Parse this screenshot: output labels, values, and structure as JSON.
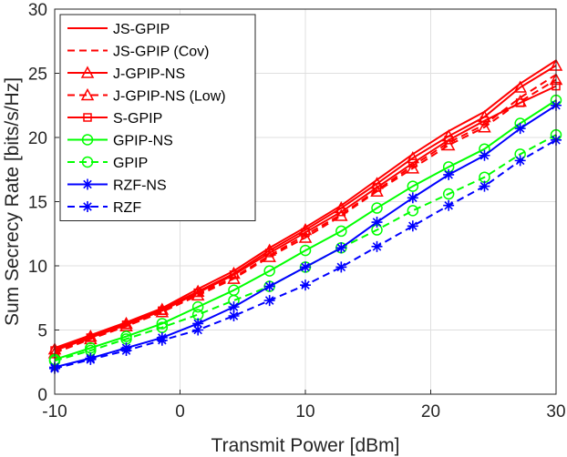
{
  "chart_data": {
    "type": "line",
    "xlabel": "Transmit Power [dBm]",
    "ylabel": "Sum Secrecy Rate [bits/s/Hz]",
    "xlim": [
      -10,
      30
    ],
    "ylim": [
      0,
      30
    ],
    "xticks": [
      -10,
      0,
      10,
      20,
      30
    ],
    "yticks": [
      0,
      5,
      10,
      15,
      20,
      25,
      30
    ],
    "grid": true,
    "legend_position": "top-left",
    "x": [
      -10,
      -7.14,
      -4.29,
      -1.43,
      1.43,
      4.29,
      7.14,
      10,
      12.86,
      15.71,
      18.57,
      21.43,
      24.29,
      27.14,
      30
    ],
    "series": [
      {
        "name": "JS-GPIP",
        "color": "#ff0000",
        "dash": "solid",
        "marker": "none",
        "values": [
          3.6,
          4.6,
          5.6,
          6.7,
          8.2,
          9.6,
          11.4,
          13.0,
          14.7,
          16.7,
          18.7,
          20.5,
          22.0,
          24.2,
          26.0
        ]
      },
      {
        "name": "JS-GPIP (Cov)",
        "color": "#ff0000",
        "dash": "dashed",
        "marker": "none",
        "values": [
          3.3,
          4.3,
          5.3,
          6.4,
          7.8,
          9.1,
          10.8,
          12.4,
          14.0,
          15.9,
          17.8,
          19.6,
          21.0,
          23.1,
          24.9
        ]
      },
      {
        "name": "J-GPIP-NS",
        "color": "#ff0000",
        "dash": "solid",
        "marker": "triangle",
        "values": [
          3.5,
          4.5,
          5.5,
          6.6,
          8.0,
          9.4,
          11.2,
          12.8,
          14.5,
          16.4,
          18.4,
          20.1,
          21.6,
          23.9,
          25.6
        ]
      },
      {
        "name": "J-GPIP-NS (Low)",
        "color": "#ff0000",
        "dash": "dashed",
        "marker": "triangle",
        "values": [
          3.2,
          4.3,
          5.3,
          6.4,
          7.7,
          9.0,
          10.7,
          12.2,
          13.9,
          15.8,
          17.6,
          19.4,
          20.8,
          22.8,
          24.5
        ]
      },
      {
        "name": "S-GPIP",
        "color": "#ff0000",
        "dash": "solid",
        "marker": "square",
        "values": [
          3.4,
          4.4,
          5.4,
          6.5,
          7.9,
          9.3,
          11.0,
          12.6,
          14.2,
          16.1,
          18.0,
          19.8,
          21.3,
          22.7,
          24.0
        ]
      },
      {
        "name": "GPIP-NS",
        "color": "#00ff00",
        "dash": "solid",
        "marker": "circle",
        "values": [
          2.7,
          3.6,
          4.5,
          5.5,
          6.8,
          8.1,
          9.6,
          11.2,
          12.7,
          14.5,
          16.2,
          17.7,
          19.1,
          21.1,
          22.9
        ]
      },
      {
        "name": "GPIP",
        "color": "#00ff00",
        "dash": "dashed",
        "marker": "circle",
        "values": [
          2.6,
          3.4,
          4.3,
          5.2,
          6.2,
          7.3,
          8.4,
          9.9,
          11.4,
          12.8,
          14.3,
          15.6,
          16.9,
          18.7,
          20.2
        ]
      },
      {
        "name": "RZF-NS",
        "color": "#0000ff",
        "dash": "solid",
        "marker": "asterisk",
        "values": [
          2.1,
          2.8,
          3.6,
          4.4,
          5.5,
          6.8,
          8.4,
          9.9,
          11.4,
          13.4,
          15.3,
          17.1,
          18.6,
          20.7,
          22.5
        ]
      },
      {
        "name": "RZF",
        "color": "#0000ff",
        "dash": "dashed",
        "marker": "asterisk",
        "values": [
          2.0,
          2.7,
          3.4,
          4.2,
          5.0,
          6.1,
          7.3,
          8.5,
          9.9,
          11.5,
          13.1,
          14.7,
          16.2,
          18.2,
          19.8
        ]
      }
    ]
  }
}
